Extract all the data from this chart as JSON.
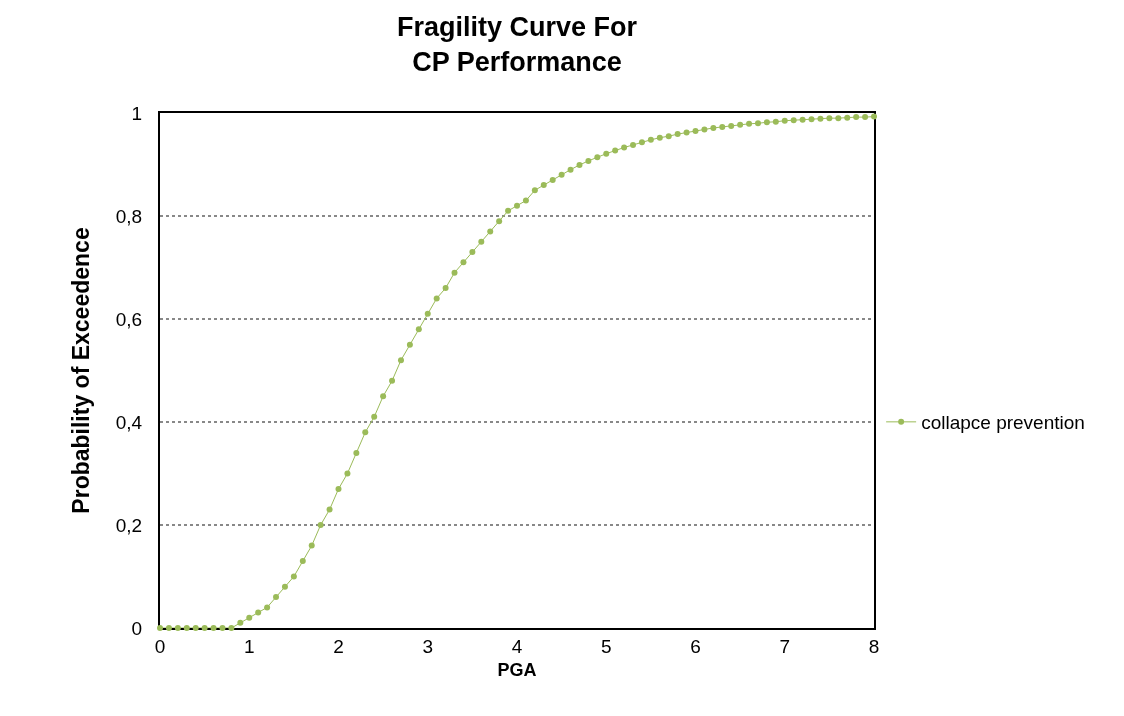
{
  "chart_data": {
    "type": "line",
    "title": "Fragility Curve For\nCP Performance",
    "xlabel": "PGA",
    "ylabel": "Probability of Exceedence",
    "x": [
      0,
      0.1,
      0.2,
      0.3,
      0.4,
      0.5,
      0.6,
      0.7,
      0.8,
      0.9,
      1,
      1.1,
      1.2,
      1.3,
      1.4,
      1.5,
      1.6,
      1.7,
      1.8,
      1.9,
      2,
      2.1,
      2.2,
      2.3,
      2.4,
      2.5,
      2.6,
      2.7,
      2.8,
      2.9,
      3,
      3.1,
      3.2,
      3.3,
      3.4,
      3.5,
      3.6,
      3.7,
      3.8,
      3.9,
      4,
      4.1,
      4.2,
      4.3,
      4.4,
      4.5,
      4.6,
      4.7,
      4.8,
      4.9,
      5,
      5.1,
      5.2,
      5.3,
      5.4,
      5.5,
      5.6,
      5.7,
      5.8,
      5.9,
      6,
      6.1,
      6.2,
      6.3,
      6.4,
      6.5,
      6.6,
      6.7,
      6.8,
      6.9,
      7,
      7.1,
      7.2,
      7.3,
      7.4,
      7.5,
      7.6,
      7.7,
      7.8,
      7.9,
      8
    ],
    "series": [
      {
        "name": "collapce prevention",
        "color": "#9bbb59",
        "values": [
          0,
          0,
          0,
          0,
          0,
          0,
          0,
          0,
          0,
          0.01,
          0.02,
          0.03,
          0.04,
          0.06,
          0.08,
          0.1,
          0.13,
          0.16,
          0.2,
          0.23,
          0.27,
          0.3,
          0.34,
          0.38,
          0.41,
          0.45,
          0.48,
          0.52,
          0.55,
          0.58,
          0.61,
          0.64,
          0.66,
          0.69,
          0.71,
          0.73,
          0.75,
          0.77,
          0.79,
          0.81,
          0.82,
          0.83,
          0.85,
          0.86,
          0.87,
          0.88,
          0.89,
          0.899,
          0.907,
          0.914,
          0.921,
          0.927,
          0.933,
          0.938,
          0.943,
          0.948,
          0.952,
          0.955,
          0.959,
          0.962,
          0.965,
          0.968,
          0.971,
          0.973,
          0.975,
          0.977,
          0.979,
          0.98,
          0.982,
          0.983,
          0.985,
          0.986,
          0.987,
          0.988,
          0.989,
          0.99,
          0.99,
          0.991,
          0.992,
          0.992,
          0.993
        ]
      }
    ],
    "xlim": [
      0,
      8
    ],
    "xticks": [
      0,
      1,
      2,
      3,
      4,
      5,
      6,
      7,
      8
    ],
    "ylim": [
      0,
      1
    ],
    "yticks": [
      0,
      {
        "value": 0.2,
        "label": "0,2"
      },
      {
        "value": 0.4,
        "label": "0,4"
      },
      {
        "value": 0.6,
        "label": "0,6"
      },
      {
        "value": 0.8,
        "label": "0,8"
      },
      1
    ],
    "grid": "y",
    "legend": "right",
    "marker": "circle",
    "line_style": "solid"
  }
}
